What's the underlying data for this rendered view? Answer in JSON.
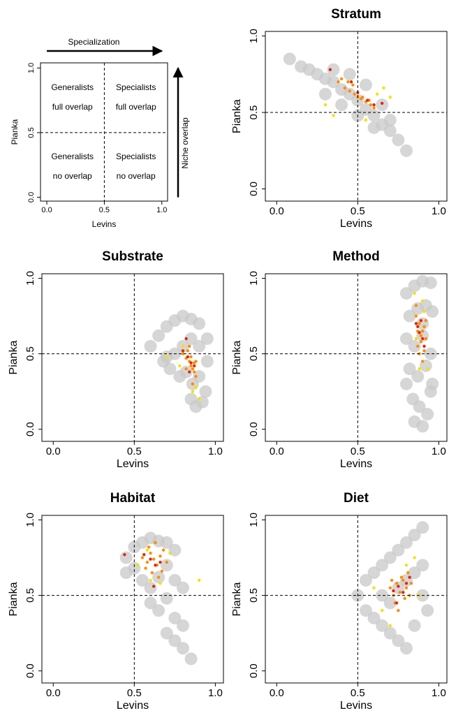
{
  "chart_data": [
    {
      "type": "schematic",
      "xlabel": "Levins",
      "ylabel": "Pianka",
      "xlim": [
        -0.055,
        1.05
      ],
      "ylim": [
        -0.03,
        1.04
      ],
      "xticks": [
        {
          "value": 0,
          "label": "0.0"
        },
        0.5,
        {
          "value": 1,
          "label": "1.0"
        }
      ],
      "yticks": [
        {
          "value": 0,
          "label": "0.0"
        },
        0.5,
        {
          "value": 1,
          "label": "1.0"
        }
      ],
      "hline": 0.5,
      "vline": 0.5,
      "quadrants": [
        [
          "Generalists",
          "full overlap"
        ],
        [
          "Specialists",
          "full overlap"
        ],
        [
          "Generalists",
          "no overlap"
        ],
        [
          "Specialists",
          "no overlap"
        ]
      ],
      "x_arrow_label": "Specialization",
      "y_arrow_label": "Niche overlap"
    },
    {
      "type": "scatter",
      "title": "Stratum",
      "xlabel": "Levins",
      "ylabel": "Pianka",
      "xlim": [
        -0.07,
        1.05
      ],
      "ylim": [
        -0.08,
        1.03
      ],
      "xticks": [
        {
          "value": 0,
          "label": "0.0"
        },
        0.5,
        {
          "value": 1,
          "label": "1.0"
        }
      ],
      "yticks": [
        {
          "value": 0,
          "label": "0.0"
        },
        0.5,
        {
          "value": 1,
          "label": "1.0"
        }
      ],
      "hline": 0.5,
      "vline": 0.5,
      "series": [
        {
          "color": "#c8c8c8",
          "x": [
            0.08,
            0.15,
            0.2,
            0.25,
            0.3,
            0.35,
            0.4,
            0.45,
            0.5,
            0.55,
            0.6,
            0.65,
            0.7,
            0.75,
            0.8,
            0.3,
            0.4,
            0.5,
            0.6,
            0.7,
            0.45,
            0.55,
            0.65,
            0.35
          ],
          "values": [
            0.85,
            0.8,
            0.78,
            0.75,
            0.72,
            0.7,
            0.65,
            0.62,
            0.58,
            0.52,
            0.48,
            0.42,
            0.38,
            0.32,
            0.25,
            0.62,
            0.55,
            0.48,
            0.4,
            0.45,
            0.75,
            0.68,
            0.55,
            0.78
          ]
        },
        {
          "color": "#ff8c00",
          "x": [
            0.38,
            0.42,
            0.45,
            0.48,
            0.5,
            0.52,
            0.55,
            0.58,
            0.6,
            0.44,
            0.47,
            0.53,
            0.57,
            0.4
          ],
          "values": [
            0.7,
            0.66,
            0.64,
            0.62,
            0.6,
            0.59,
            0.57,
            0.55,
            0.53,
            0.7,
            0.68,
            0.6,
            0.58,
            0.72
          ]
        },
        {
          "color": "#f2e200",
          "x": [
            0.3,
            0.35,
            0.62,
            0.7,
            0.55,
            0.66
          ],
          "values": [
            0.55,
            0.48,
            0.62,
            0.6,
            0.45,
            0.66
          ]
        },
        {
          "color": "#e02810",
          "x": [
            0.33,
            0.46,
            0.5,
            0.56,
            0.6,
            0.65
          ],
          "values": [
            0.78,
            0.7,
            0.63,
            0.58,
            0.55,
            0.56
          ]
        }
      ]
    },
    {
      "type": "scatter",
      "title": "Substrate",
      "xlabel": "Levins",
      "ylabel": "Pianka",
      "xlim": [
        -0.07,
        1.05
      ],
      "ylim": [
        -0.08,
        1.03
      ],
      "xticks": [
        {
          "value": 0,
          "label": "0.0"
        },
        0.5,
        {
          "value": 1,
          "label": "1.0"
        }
      ],
      "yticks": [
        {
          "value": 0,
          "label": "0.0"
        },
        0.5,
        {
          "value": 1,
          "label": "1.0"
        }
      ],
      "hline": 0.5,
      "vline": 0.5,
      "series": [
        {
          "color": "#c8c8c8",
          "x": [
            0.6,
            0.65,
            0.7,
            0.75,
            0.8,
            0.85,
            0.9,
            0.95,
            0.7,
            0.75,
            0.8,
            0.85,
            0.9,
            0.95,
            0.78,
            0.82,
            0.86,
            0.9,
            0.94,
            0.85,
            0.88,
            0.92,
            0.68,
            0.72
          ],
          "values": [
            0.55,
            0.62,
            0.68,
            0.72,
            0.75,
            0.73,
            0.7,
            0.6,
            0.48,
            0.5,
            0.55,
            0.6,
            0.55,
            0.45,
            0.35,
            0.38,
            0.3,
            0.35,
            0.25,
            0.2,
            0.15,
            0.18,
            0.45,
            0.4
          ]
        },
        {
          "color": "#ff8c00",
          "x": [
            0.8,
            0.82,
            0.84,
            0.85,
            0.86,
            0.87,
            0.88,
            0.83,
            0.85,
            0.87,
            0.82,
            0.86,
            0.84,
            0.88
          ],
          "values": [
            0.5,
            0.47,
            0.45,
            0.42,
            0.4,
            0.38,
            0.35,
            0.52,
            0.48,
            0.44,
            0.4,
            0.3,
            0.55,
            0.45
          ]
        },
        {
          "color": "#f2e200",
          "x": [
            0.78,
            0.8,
            0.88,
            0.9,
            0.86,
            0.7
          ],
          "values": [
            0.42,
            0.55,
            0.28,
            0.2,
            0.25,
            0.48
          ]
        },
        {
          "color": "#e02810",
          "x": [
            0.8,
            0.83,
            0.85,
            0.87,
            0.84,
            0.82
          ],
          "values": [
            0.52,
            0.48,
            0.44,
            0.42,
            0.38,
            0.6
          ]
        }
      ]
    },
    {
      "type": "scatter",
      "title": "Method",
      "xlabel": "Levins",
      "ylabel": "Pianka",
      "xlim": [
        -0.07,
        1.05
      ],
      "ylim": [
        -0.08,
        1.03
      ],
      "xticks": [
        {
          "value": 0,
          "label": "0.0"
        },
        0.5,
        {
          "value": 1,
          "label": "1.0"
        }
      ],
      "yticks": [
        {
          "value": 0,
          "label": "0.0"
        },
        0.5,
        {
          "value": 1,
          "label": "1.0"
        }
      ],
      "hline": 0.5,
      "vline": 0.5,
      "series": [
        {
          "color": "#c8c8c8",
          "x": [
            0.8,
            0.85,
            0.9,
            0.95,
            0.82,
            0.87,
            0.92,
            0.96,
            0.8,
            0.85,
            0.9,
            0.95,
            0.82,
            0.87,
            0.92,
            0.96,
            0.84,
            0.88,
            0.93,
            0.85,
            0.9,
            0.95,
            0.8,
            0.9
          ],
          "values": [
            0.9,
            0.95,
            0.98,
            0.97,
            0.75,
            0.8,
            0.82,
            0.78,
            0.6,
            0.55,
            0.62,
            0.5,
            0.4,
            0.35,
            0.42,
            0.3,
            0.2,
            0.15,
            0.1,
            0.05,
            0.02,
            0.25,
            0.3,
            0.7
          ]
        },
        {
          "color": "#ff8c00",
          "x": [
            0.86,
            0.88,
            0.9,
            0.92,
            0.87,
            0.89,
            0.91,
            0.88,
            0.9,
            0.86,
            0.92,
            0.89,
            0.87,
            0.91
          ],
          "values": [
            0.75,
            0.7,
            0.65,
            0.6,
            0.55,
            0.62,
            0.68,
            0.5,
            0.45,
            0.82,
            0.72,
            0.58,
            0.65,
            0.52
          ]
        },
        {
          "color": "#f2e200",
          "x": [
            0.85,
            0.9,
            0.93,
            0.88,
            0.86,
            0.91
          ],
          "values": [
            0.9,
            0.85,
            0.4,
            0.4,
            0.6,
            0.78
          ]
        },
        {
          "color": "#e02810",
          "x": [
            0.87,
            0.89,
            0.9,
            0.88,
            0.91,
            0.86
          ],
          "values": [
            0.68,
            0.72,
            0.6,
            0.64,
            0.55,
            0.7
          ]
        }
      ]
    },
    {
      "type": "scatter",
      "title": "Habitat",
      "xlabel": "Levins",
      "ylabel": "Pianka",
      "xlim": [
        -0.07,
        1.05
      ],
      "ylim": [
        -0.08,
        1.03
      ],
      "xticks": [
        {
          "value": 0,
          "label": "0.0"
        },
        0.5,
        {
          "value": 1,
          "label": "1.0"
        }
      ],
      "yticks": [
        {
          "value": 0,
          "label": "0.0"
        },
        0.5,
        {
          "value": 1,
          "label": "1.0"
        }
      ],
      "hline": 0.5,
      "vline": 0.5,
      "series": [
        {
          "color": "#c8c8c8",
          "x": [
            0.45,
            0.5,
            0.55,
            0.6,
            0.65,
            0.7,
            0.75,
            0.5,
            0.55,
            0.6,
            0.65,
            0.7,
            0.75,
            0.6,
            0.65,
            0.7,
            0.75,
            0.8,
            0.7,
            0.75,
            0.8,
            0.85,
            0.45,
            0.8
          ],
          "values": [
            0.75,
            0.82,
            0.85,
            0.88,
            0.86,
            0.85,
            0.8,
            0.68,
            0.6,
            0.55,
            0.62,
            0.7,
            0.6,
            0.45,
            0.4,
            0.48,
            0.35,
            0.3,
            0.25,
            0.2,
            0.15,
            0.08,
            0.65,
            0.55
          ]
        },
        {
          "color": "#ff8c00",
          "x": [
            0.55,
            0.58,
            0.6,
            0.62,
            0.64,
            0.66,
            0.68,
            0.57,
            0.61,
            0.65,
            0.7,
            0.59,
            0.63,
            0.67
          ],
          "values": [
            0.75,
            0.72,
            0.78,
            0.74,
            0.7,
            0.76,
            0.8,
            0.68,
            0.65,
            0.62,
            0.72,
            0.82,
            0.85,
            0.66
          ]
        },
        {
          "color": "#f2e200",
          "x": [
            0.52,
            0.6,
            0.66,
            0.72,
            0.58,
            0.9
          ],
          "values": [
            0.7,
            0.6,
            0.58,
            0.78,
            0.8,
            0.6
          ]
        },
        {
          "color": "#e02810",
          "x": [
            0.56,
            0.6,
            0.63,
            0.66,
            0.62,
            0.44
          ],
          "values": [
            0.77,
            0.74,
            0.7,
            0.72,
            0.56,
            0.77
          ]
        }
      ]
    },
    {
      "type": "scatter",
      "title": "Diet",
      "xlabel": "Levins",
      "ylabel": "Pianka",
      "xlim": [
        -0.07,
        1.05
      ],
      "ylim": [
        -0.08,
        1.03
      ],
      "xticks": [
        {
          "value": 0,
          "label": "0.0"
        },
        0.5,
        {
          "value": 1,
          "label": "1.0"
        }
      ],
      "yticks": [
        {
          "value": 0,
          "label": "0.0"
        },
        0.5,
        {
          "value": 1,
          "label": "1.0"
        }
      ],
      "hline": 0.5,
      "vline": 0.5,
      "series": [
        {
          "color": "#c8c8c8",
          "x": [
            0.5,
            0.55,
            0.6,
            0.65,
            0.7,
            0.75,
            0.8,
            0.85,
            0.9,
            0.55,
            0.6,
            0.65,
            0.7,
            0.75,
            0.8,
            0.85,
            0.9,
            0.65,
            0.7,
            0.75,
            0.8,
            0.85,
            0.9,
            0.93
          ],
          "values": [
            0.5,
            0.6,
            0.65,
            0.7,
            0.75,
            0.8,
            0.85,
            0.9,
            0.95,
            0.4,
            0.35,
            0.3,
            0.25,
            0.2,
            0.15,
            0.3,
            0.5,
            0.5,
            0.45,
            0.55,
            0.6,
            0.65,
            0.7,
            0.4
          ]
        },
        {
          "color": "#ff8c00",
          "x": [
            0.7,
            0.72,
            0.74,
            0.76,
            0.78,
            0.8,
            0.82,
            0.73,
            0.77,
            0.81,
            0.75,
            0.79,
            0.71,
            0.83
          ],
          "values": [
            0.55,
            0.5,
            0.58,
            0.52,
            0.6,
            0.55,
            0.5,
            0.45,
            0.62,
            0.65,
            0.4,
            0.48,
            0.6,
            0.58
          ]
        },
        {
          "color": "#f2e200",
          "x": [
            0.6,
            0.65,
            0.85,
            0.88,
            0.7,
            0.8
          ],
          "values": [
            0.55,
            0.4,
            0.75,
            0.5,
            0.3,
            0.7
          ]
        },
        {
          "color": "#e02810",
          "x": [
            0.72,
            0.75,
            0.78,
            0.8,
            0.74,
            0.82
          ],
          "values": [
            0.53,
            0.56,
            0.52,
            0.58,
            0.45,
            0.62
          ]
        }
      ]
    }
  ]
}
